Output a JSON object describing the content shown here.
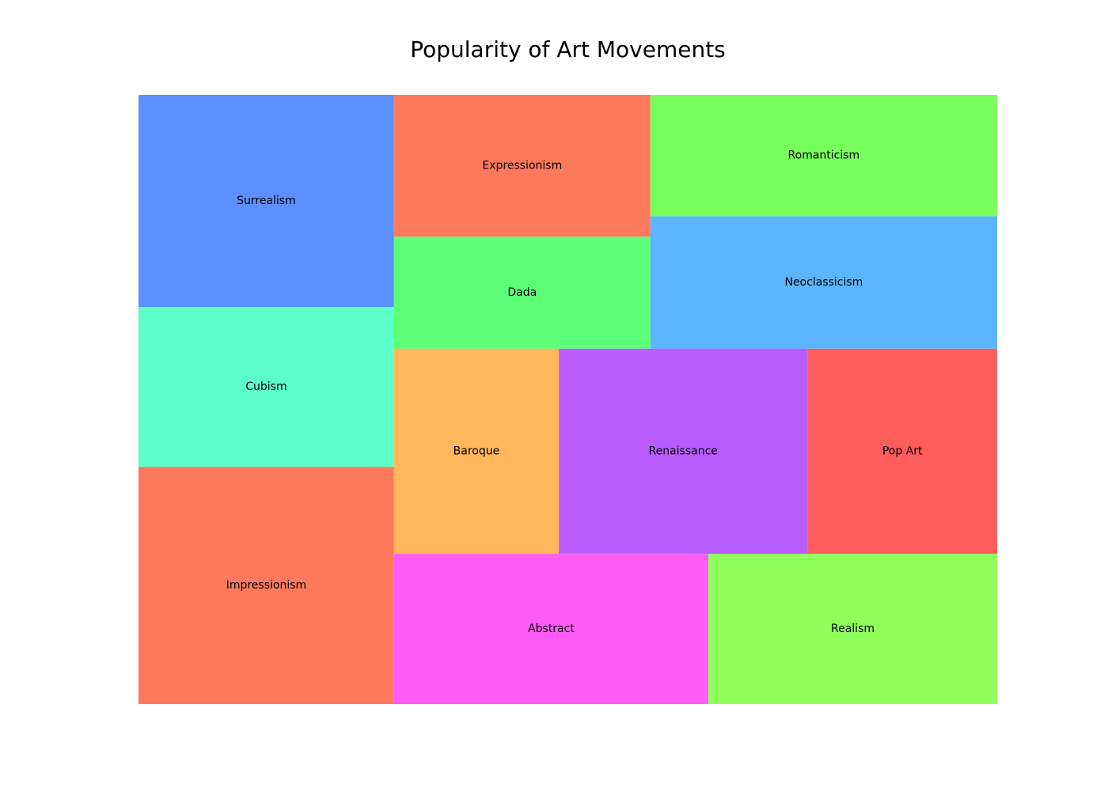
{
  "chart_data": {
    "type": "treemap",
    "title": "Popularity of Art Movements",
    "items": [
      {
        "label": "Impressionism",
        "value": 95,
        "color": "#FF7A5C"
      },
      {
        "label": "Cubism",
        "value": 64,
        "color": "#5CFFCA"
      },
      {
        "label": "Surrealism",
        "value": 85,
        "color": "#5C8FFF"
      },
      {
        "label": "Expressionism",
        "value": 57,
        "color": "#FF7A5C"
      },
      {
        "label": "Dada",
        "value": 45,
        "color": "#5CFF77"
      },
      {
        "label": "Romanticism",
        "value": 66,
        "color": "#78FF5C"
      },
      {
        "label": "Neoclassicism",
        "value": 72,
        "color": "#5CB5FF"
      },
      {
        "label": "Baroque",
        "value": 53,
        "color": "#FFB65C"
      },
      {
        "label": "Renaissance",
        "value": 80,
        "color": "#B85CFF"
      },
      {
        "label": "Pop Art",
        "value": 61,
        "color": "#FF5C5C"
      },
      {
        "label": "Abstract",
        "value": 74,
        "color": "#FF5CF5"
      },
      {
        "label": "Realism",
        "value": 68,
        "color": "#8FFF5C"
      }
    ]
  }
}
